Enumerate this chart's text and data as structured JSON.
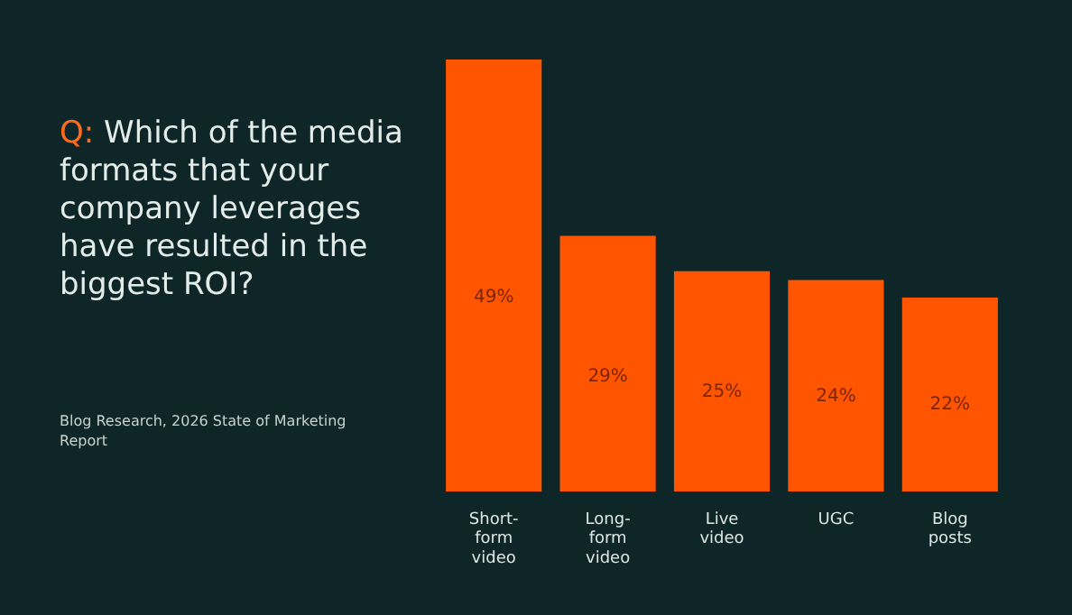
{
  "chart_data": {
    "type": "bar",
    "title": "Q: Which of the media formats that your company leverages have resulted in the biggest ROI?",
    "annotations": [
      "Blog Research, 2026 State of Marketing Report"
    ],
    "categories": [
      "Short-form video",
      "Long-form video",
      "Live video",
      "UGC",
      "Blog posts"
    ],
    "values": [
      49,
      29,
      25,
      24,
      22
    ],
    "color": "#ff5400",
    "value_labels": [
      "49%",
      "29%",
      "25%",
      "24%",
      "22%"
    ],
    "grid": false,
    "legend": false,
    "tick_labels": "x"
  }
}
